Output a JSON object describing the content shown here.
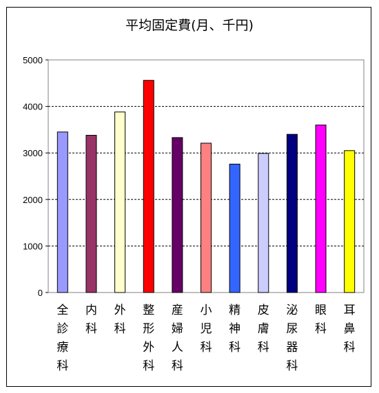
{
  "chart_data": {
    "type": "bar",
    "title": "平均固定費(月、千円)",
    "categories": [
      "全診療科",
      "内科",
      "外科",
      "整形外科",
      "産婦人科",
      "小児科",
      "精神科",
      "皮膚科",
      "泌尿器科",
      "眼科",
      "耳鼻科"
    ],
    "values": [
      3450,
      3380,
      3880,
      4560,
      3330,
      3210,
      2760,
      2990,
      3400,
      3600,
      3050
    ],
    "colors": [
      "#9999ff",
      "#993366",
      "#ffffcc",
      "#ff0000",
      "#660066",
      "#ff8080",
      "#3366ff",
      "#ccccff",
      "#000080",
      "#ff00ff",
      "#ffff00"
    ],
    "ylim": [
      0,
      5000
    ],
    "yticks": [
      0,
      1000,
      2000,
      3000,
      4000,
      5000
    ],
    "grid": true,
    "legend": "none",
    "xlabel": "",
    "ylabel": ""
  }
}
